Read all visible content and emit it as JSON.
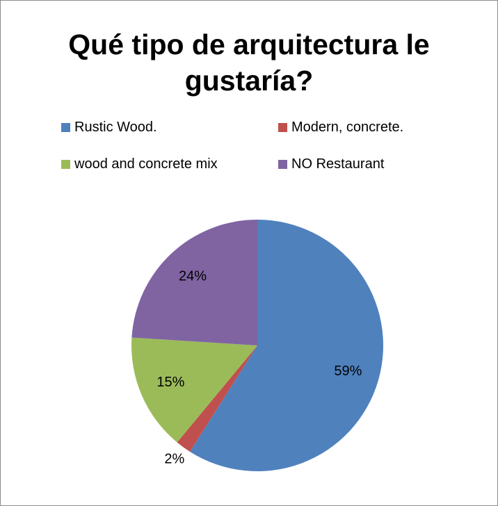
{
  "chart_data": {
    "type": "pie",
    "title": "Qué tipo de arquitectura le gustaría?",
    "categories": [
      "Rustic Wood.",
      "Modern, concrete.",
      "wood and concrete mix",
      "NO Restaurant"
    ],
    "values": [
      59,
      2,
      15,
      24
    ],
    "value_labels": [
      "59%",
      "2%",
      "15%",
      "24%"
    ],
    "colors": [
      "#4f81bd",
      "#c0504d",
      "#9bbb59",
      "#8064a2"
    ],
    "legend": "top"
  }
}
